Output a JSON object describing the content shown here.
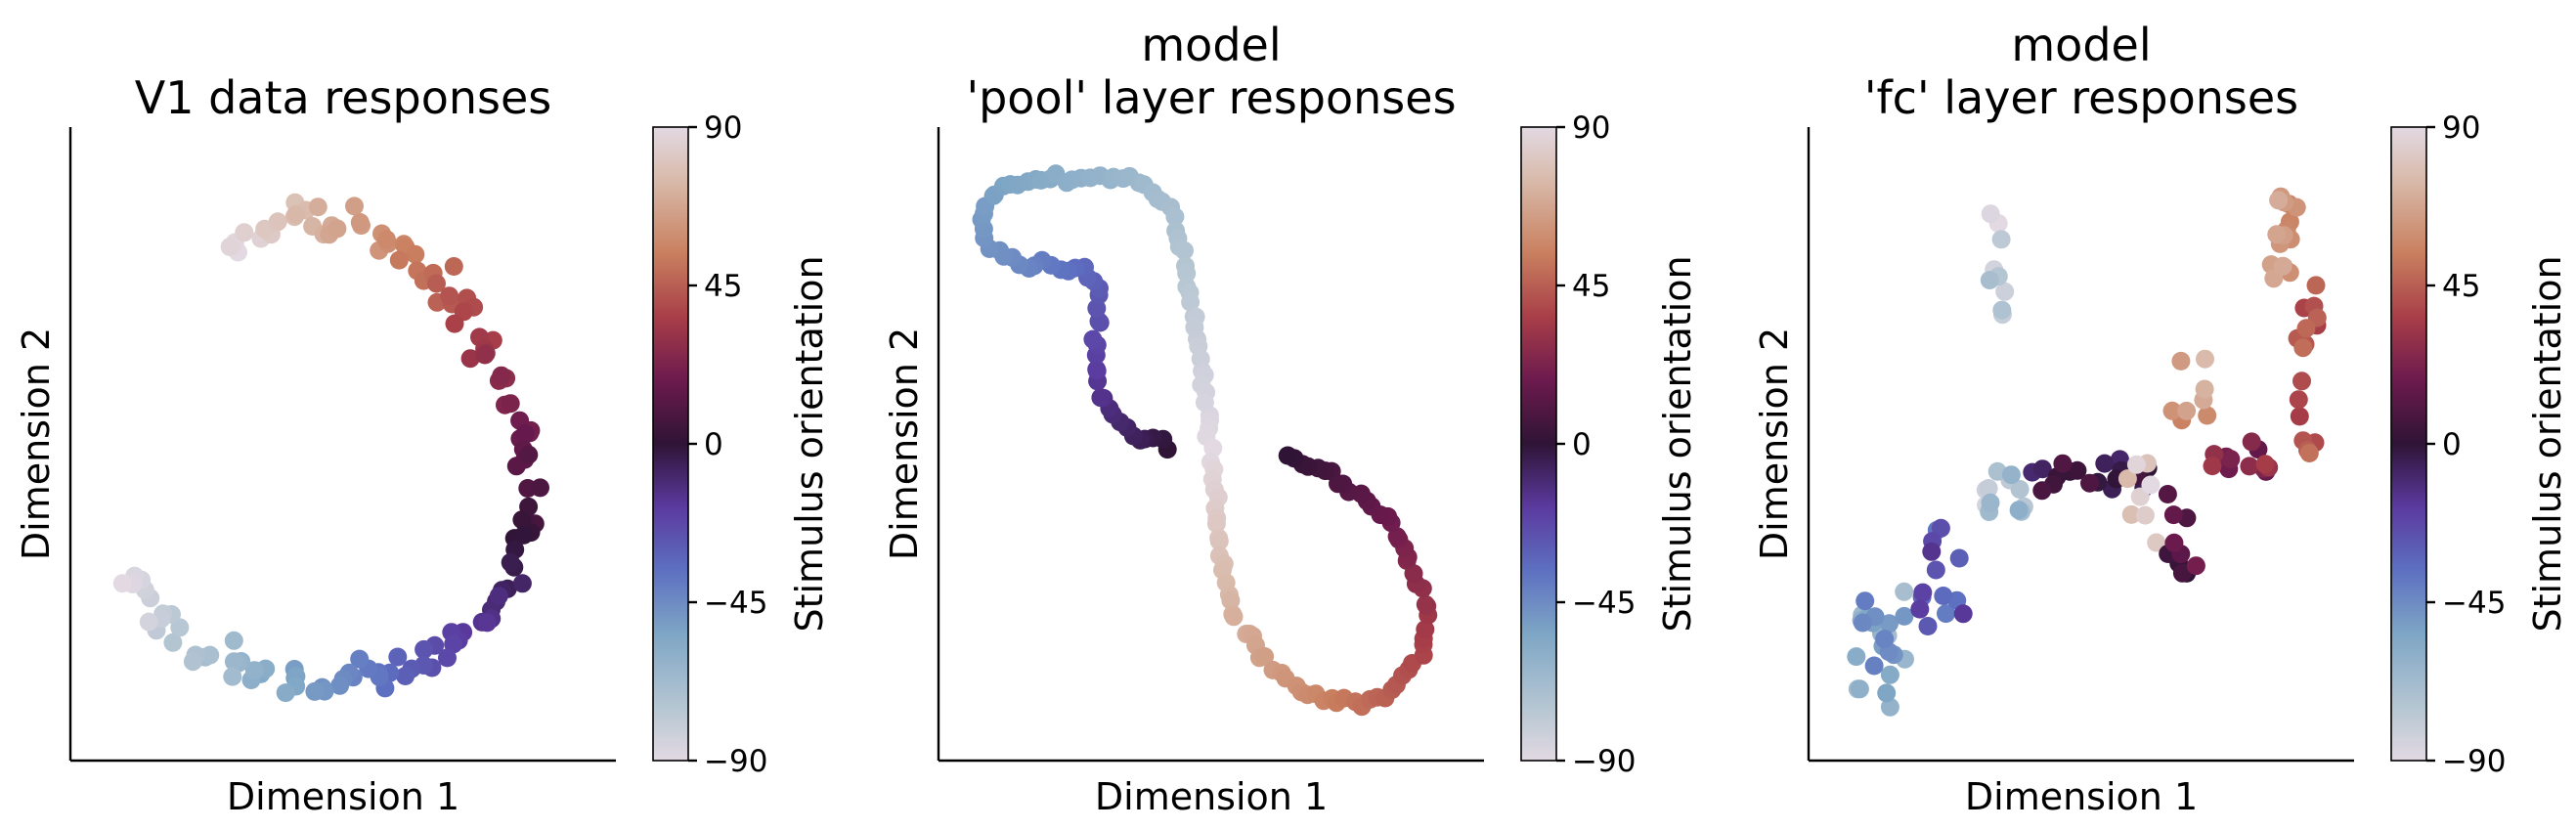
{
  "chart_data": [
    {
      "type": "scatter",
      "title": "V1 data responses",
      "xlabel": "Dimension 1",
      "ylabel": "Dimension 2",
      "colorbar": {
        "label": "Stimulus orientation",
        "ticks": [
          -90,
          -45,
          0,
          45,
          90
        ],
        "range": [
          -90,
          90
        ],
        "colormap": "twilight"
      },
      "xlim": [
        0,
        1
      ],
      "ylim": [
        0,
        1
      ],
      "path": [
        [
          0.28,
          0.83
        ],
        [
          0.32,
          0.86
        ],
        [
          0.4,
          0.89
        ],
        [
          0.5,
          0.87
        ],
        [
          0.6,
          0.83
        ],
        [
          0.68,
          0.77
        ],
        [
          0.75,
          0.7
        ],
        [
          0.8,
          0.62
        ],
        [
          0.85,
          0.52
        ],
        [
          0.87,
          0.43
        ],
        [
          0.86,
          0.35
        ],
        [
          0.83,
          0.27
        ],
        [
          0.77,
          0.2
        ],
        [
          0.68,
          0.14
        ],
        [
          0.58,
          0.11
        ],
        [
          0.48,
          0.09
        ],
        [
          0.38,
          0.1
        ],
        [
          0.28,
          0.13
        ],
        [
          0.18,
          0.18
        ],
        [
          0.1,
          0.24
        ],
        [
          0.06,
          0.27
        ]
      ],
      "point_count": 140,
      "spread": 0.015,
      "orientation_range": [
        90,
        -90
      ]
    },
    {
      "type": "scatter",
      "title": "model\n'pool' layer responses",
      "title_lines": [
        "model",
        "'pool' layer responses"
      ],
      "xlabel": "Dimension 1",
      "ylabel": "Dimension 2",
      "colorbar": {
        "label": "Stimulus orientation",
        "ticks": [
          -90,
          -45,
          0,
          45,
          90
        ],
        "range": [
          -90,
          90
        ],
        "colormap": "twilight"
      },
      "xlim": [
        0,
        1
      ],
      "ylim": [
        0,
        1
      ],
      "path": [
        [
          0.42,
          0.5
        ],
        [
          0.36,
          0.51
        ],
        [
          0.3,
          0.55
        ],
        [
          0.27,
          0.61
        ],
        [
          0.27,
          0.68
        ],
        [
          0.28,
          0.76
        ],
        [
          0.24,
          0.8
        ],
        [
          0.12,
          0.8
        ],
        [
          0.05,
          0.84
        ],
        [
          0.04,
          0.9
        ],
        [
          0.1,
          0.94
        ],
        [
          0.22,
          0.95
        ],
        [
          0.35,
          0.95
        ],
        [
          0.42,
          0.9
        ],
        [
          0.45,
          0.8
        ],
        [
          0.47,
          0.68
        ],
        [
          0.49,
          0.57
        ],
        [
          0.5,
          0.5
        ],
        [
          0.51,
          0.4
        ],
        [
          0.52,
          0.3
        ],
        [
          0.54,
          0.22
        ],
        [
          0.6,
          0.14
        ],
        [
          0.7,
          0.07
        ],
        [
          0.8,
          0.06
        ],
        [
          0.87,
          0.09
        ],
        [
          0.92,
          0.15
        ],
        [
          0.93,
          0.22
        ],
        [
          0.89,
          0.32
        ],
        [
          0.82,
          0.4
        ],
        [
          0.74,
          0.45
        ],
        [
          0.65,
          0.48
        ]
      ],
      "point_count": 170,
      "spread": 0.004,
      "orientation_range": [
        -20,
        20
      ]
    },
    {
      "type": "scatter",
      "title": "model\n'fc' layer responses",
      "title_lines": [
        "model",
        "'fc' layer responses"
      ],
      "xlabel": "Dimension 1",
      "ylabel": "Dimension 2",
      "colorbar": {
        "label": "Stimulus orientation",
        "ticks": [
          -90,
          -45,
          0,
          45,
          90
        ],
        "range": [
          -90,
          90
        ],
        "colormap": "twilight"
      },
      "xlim": [
        0,
        1
      ],
      "ylim": [
        0,
        1
      ],
      "clusters": [
        {
          "cx": 0.1,
          "cy": 0.15,
          "sx": 0.05,
          "sy": 0.1,
          "n": 24,
          "o": [
            -70,
            -40
          ]
        },
        {
          "cx": 0.22,
          "cy": 0.28,
          "sx": 0.05,
          "sy": 0.1,
          "n": 14,
          "o": [
            -40,
            -15
          ]
        },
        {
          "cx": 0.33,
          "cy": 0.8,
          "sx": 0.02,
          "sy": 0.1,
          "n": 9,
          "o": [
            -90,
            -70
          ]
        },
        {
          "cx": 0.36,
          "cy": 0.42,
          "sx": 0.06,
          "sy": 0.04,
          "n": 12,
          "o": [
            -85,
            -60
          ]
        },
        {
          "cx": 0.52,
          "cy": 0.45,
          "sx": 0.12,
          "sy": 0.03,
          "n": 18,
          "o": [
            -10,
            10
          ]
        },
        {
          "cx": 0.62,
          "cy": 0.4,
          "sx": 0.03,
          "sy": 0.08,
          "n": 8,
          "o": [
            75,
            90
          ]
        },
        {
          "cx": 0.7,
          "cy": 0.34,
          "sx": 0.03,
          "sy": 0.08,
          "n": 10,
          "o": [
            0,
            20
          ]
        },
        {
          "cx": 0.72,
          "cy": 0.6,
          "sx": 0.04,
          "sy": 0.08,
          "n": 8,
          "o": [
            55,
            75
          ]
        },
        {
          "cx": 0.82,
          "cy": 0.48,
          "sx": 0.06,
          "sy": 0.03,
          "n": 12,
          "o": [
            15,
            35
          ]
        },
        {
          "cx": 0.9,
          "cy": 0.85,
          "sx": 0.03,
          "sy": 0.07,
          "n": 16,
          "o": [
            55,
            70
          ]
        },
        {
          "cx": 0.95,
          "cy": 0.62,
          "sx": 0.02,
          "sy": 0.15,
          "n": 16,
          "o": [
            35,
            50
          ]
        }
      ]
    }
  ]
}
